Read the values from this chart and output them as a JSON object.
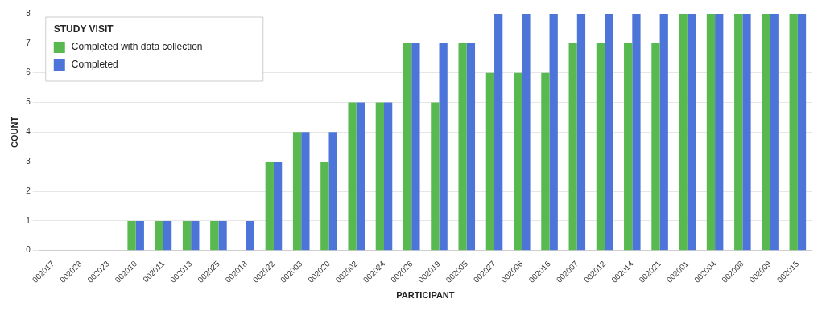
{
  "chart_data": {
    "type": "bar",
    "xlabel": "PARTICIPANT",
    "ylabel": "COUNT",
    "legend_title": "STUDY VISIT",
    "legend": "top left",
    "grid": "y",
    "categories": [
      "002017",
      "002028",
      "002023",
      "002010",
      "002011",
      "002013",
      "002025",
      "002018",
      "002022",
      "002003",
      "002020",
      "002002",
      "002024",
      "002026",
      "002019",
      "002005",
      "002027",
      "002006",
      "002016",
      "002007",
      "002012",
      "002014",
      "002021",
      "002001",
      "002004",
      "002008",
      "002009",
      "002015"
    ],
    "series": [
      {
        "name": "Completed with data collection",
        "color": "#57b94f",
        "values": [
          0,
          0,
          0,
          1,
          1,
          1,
          1,
          0,
          3,
          4,
          3,
          5,
          5,
          7,
          5,
          7,
          6,
          6,
          6,
          7,
          7,
          7,
          7,
          8,
          8,
          8,
          8,
          8
        ]
      },
      {
        "name": "Completed",
        "color": "#4d74d9",
        "values": [
          0,
          0,
          0,
          1,
          1,
          1,
          1,
          1,
          3,
          4,
          4,
          5,
          5,
          7,
          7,
          7,
          8,
          8,
          8,
          8,
          8,
          8,
          8,
          8,
          8,
          8,
          8,
          8
        ]
      }
    ],
    "ylim": [
      0,
      8
    ],
    "yticks": [
      0,
      1,
      2,
      3,
      4,
      5,
      6,
      7,
      8
    ]
  }
}
